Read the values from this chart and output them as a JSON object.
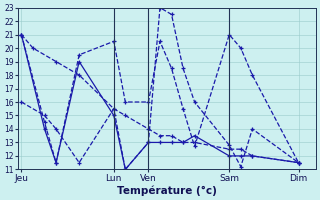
{
  "background_color": "#cdf0f0",
  "grid_color": "#99cccc",
  "line_color": "#1a1aaa",
  "xlabel": "Température (°c)",
  "ylim": [
    11,
    23
  ],
  "yticks": [
    11,
    12,
    13,
    14,
    15,
    16,
    17,
    18,
    19,
    20,
    21,
    22,
    23
  ],
  "day_labels": [
    "Jeu",
    "Lun",
    "Ven",
    "Sam",
    "Dim"
  ],
  "day_positions": [
    0,
    8,
    11,
    18,
    24
  ],
  "xlim": [
    -0.3,
    25.5
  ],
  "series": [
    {
      "x": [
        0,
        1,
        3,
        5,
        8,
        9,
        11,
        12,
        13,
        14,
        15,
        18,
        19,
        20,
        24
      ],
      "y": [
        21.0,
        20.0,
        19.0,
        18.0,
        15.5,
        15.0,
        14.0,
        13.5,
        13.5,
        13.0,
        13.0,
        12.5,
        12.5,
        12.0,
        11.5
      ],
      "linestyle": "--",
      "linewidth": 0.9
    },
    {
      "x": [
        0,
        2,
        3,
        5,
        8,
        9,
        11,
        12,
        13,
        14,
        15,
        18,
        19,
        20,
        24
      ],
      "y": [
        21.0,
        14.0,
        11.5,
        19.0,
        15.0,
        11.0,
        13.0,
        13.0,
        13.0,
        13.0,
        13.5,
        12.0,
        12.0,
        12.0,
        11.5
      ],
      "linestyle": "-",
      "linewidth": 0.9
    },
    {
      "x": [
        0,
        2,
        3,
        5,
        8,
        9,
        11,
        12,
        13,
        14,
        15,
        18,
        19,
        20,
        24
      ],
      "y": [
        16.0,
        15.0,
        14.0,
        11.5,
        15.5,
        11.0,
        13.0,
        23.0,
        22.5,
        18.5,
        16.0,
        12.8,
        11.2,
        14.0,
        11.5
      ],
      "linestyle": "--",
      "linewidth": 0.9
    },
    {
      "x": [
        0,
        2,
        3,
        5,
        8,
        9,
        11,
        12,
        13,
        14,
        15,
        18,
        19,
        20,
        24
      ],
      "y": [
        21.0,
        14.5,
        11.5,
        19.5,
        20.5,
        16.0,
        16.0,
        20.5,
        18.5,
        15.5,
        12.7,
        21.0,
        20.0,
        18.0,
        11.5
      ],
      "linestyle": "--",
      "linewidth": 0.9
    }
  ],
  "vlines": [
    8,
    11,
    18,
    24
  ]
}
